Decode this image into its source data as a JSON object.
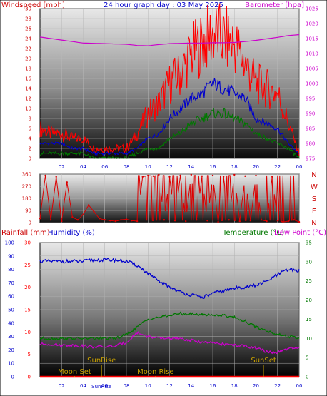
{
  "header": {
    "title": "24 hour graph day : 03 May 2025",
    "left_label": "Windspeed [mph]",
    "right_label": "Barometer [hpa]"
  },
  "lower_header": {
    "rain_label": "Rainfall (mm)",
    "hum_label": "Humidity (%)",
    "temp_label": "Temperature (°C)",
    "dew_label": "Dew Point (°C)"
  },
  "colors": {
    "windspeed": "#ff0000",
    "wind_avg": "#0000cc",
    "wind_low": "#007700",
    "barometer": "#cc00cc",
    "direction": "#dd0000",
    "humidity": "#0000cc",
    "temperature": "#007700",
    "dewpoint": "#cc00cc",
    "rainfall": "#ff0000",
    "events": "#c8a000",
    "title": "#0000cc",
    "left_axis": "#cc0000",
    "right_axis": "#cc00cc"
  },
  "chart_data": [
    {
      "type": "line",
      "name": "wind",
      "x_ticks": [
        "02",
        "04",
        "06",
        "08",
        "10",
        "12",
        "14",
        "16",
        "18",
        "20",
        "22",
        "00"
      ],
      "y_left_ticks": [
        "0",
        "2",
        "4",
        "6",
        "8",
        "10",
        "12",
        "14",
        "16",
        "18",
        "20",
        "22",
        "24",
        "26",
        "28",
        "30"
      ],
      "y_right_ticks": [
        "975",
        "980",
        "985",
        "990",
        "995",
        "1000",
        "1005",
        "1010",
        "1015",
        "1020",
        "1025"
      ],
      "ylim_left": [
        0,
        30
      ],
      "ylim_right": [
        975,
        1025
      ],
      "hours": [
        0,
        1,
        2,
        3,
        4,
        5,
        6,
        7,
        8,
        9,
        10,
        11,
        12,
        13,
        14,
        15,
        16,
        17,
        18,
        19,
        20,
        21,
        22,
        23,
        24
      ],
      "series": [
        {
          "key": "windspeed",
          "values": [
            6,
            5,
            5,
            4,
            4,
            2,
            2,
            2,
            2,
            5,
            9,
            11,
            15,
            17,
            21,
            23,
            25,
            24,
            23,
            19,
            15,
            14,
            13,
            7,
            1
          ]
        },
        {
          "key": "wind_avg",
          "values": [
            3,
            3,
            3,
            2,
            2,
            1,
            1,
            1,
            1,
            2,
            4,
            5,
            8,
            10,
            12,
            13,
            15,
            14,
            13,
            12,
            8,
            7,
            6,
            3,
            1
          ]
        },
        {
          "key": "wind_low",
          "values": [
            1,
            1,
            1,
            1,
            1,
            0,
            0,
            0,
            0,
            1,
            2,
            2,
            4,
            5,
            7,
            8,
            9,
            9,
            8,
            7,
            5,
            4,
            3,
            2,
            0
          ]
        },
        {
          "key": "barometer",
          "values": [
            1015.5,
            1015,
            1014.5,
            1014,
            1013.5,
            1013.4,
            1013.3,
            1013.2,
            1013.1,
            1012.7,
            1012.6,
            1013,
            1013.3,
            1013.4,
            1013.5,
            1013.5,
            1013.6,
            1013.6,
            1013.7,
            1014,
            1014.4,
            1014.9,
            1015.4,
            1016,
            1016.3
          ]
        }
      ]
    },
    {
      "type": "scatter",
      "name": "wind-direction",
      "y_ticks": [
        "0",
        "90",
        "180",
        "270",
        "360"
      ],
      "compass": [
        "N",
        "W",
        "S",
        "E",
        "N"
      ],
      "ylim": [
        0,
        360
      ],
      "hours": [
        0,
        0.5,
        1,
        1.5,
        2,
        2.5,
        3,
        3.5,
        4,
        4.5,
        5,
        5.5,
        6,
        6.5,
        7,
        7.5,
        8,
        8.5,
        9,
        9.5,
        10,
        10.5,
        11,
        11.5,
        12,
        12.5,
        13,
        13.5,
        14,
        14.5,
        15,
        15.5,
        16,
        16.5,
        17,
        17.5,
        18,
        18.5,
        19,
        19.5,
        20,
        20.5,
        21,
        21.5,
        22,
        22.5,
        23,
        23.5,
        24
      ],
      "values": [
        30,
        350,
        20,
        340,
        10,
        300,
        40,
        20,
        60,
        130,
        80,
        30,
        20,
        15,
        10,
        20,
        25,
        15,
        10,
        340,
        350,
        345,
        355,
        20,
        340,
        15,
        350,
        10,
        355,
        20,
        345,
        15,
        350,
        5,
        340,
        20,
        355,
        10,
        345,
        15,
        350,
        20,
        10,
        340,
        15,
        5,
        10,
        20,
        5
      ]
    },
    {
      "type": "line",
      "name": "temperature-humidity",
      "x_ticks": [
        "02",
        "04",
        "06",
        "08",
        "10",
        "12",
        "14",
        "16",
        "18",
        "20",
        "22",
        "00"
      ],
      "y_far_left_ticks": [
        "0",
        "10",
        "20",
        "30",
        "40",
        "50",
        "60",
        "70",
        "80",
        "90",
        "100"
      ],
      "y_left_ticks": [
        "0",
        "5",
        "10",
        "15",
        "20",
        "25",
        "30"
      ],
      "y_right_ticks": [
        "0",
        "5",
        "10",
        "15",
        "20",
        "25",
        "30",
        "35"
      ],
      "ylim_humidity": [
        0,
        100
      ],
      "ylim_rain": [
        0,
        30
      ],
      "ylim_temp": [
        0,
        35
      ],
      "hours": [
        0,
        1,
        2,
        3,
        4,
        5,
        6,
        7,
        8,
        9,
        10,
        11,
        12,
        13,
        14,
        15,
        16,
        17,
        18,
        19,
        20,
        21,
        22,
        23,
        24
      ],
      "series": [
        {
          "key": "humidity",
          "values": [
            86,
            86,
            86,
            86,
            86,
            87,
            87,
            87,
            86,
            83,
            77,
            71,
            67,
            63,
            61,
            59,
            62,
            64,
            66,
            67,
            68,
            71,
            76,
            80,
            79
          ]
        },
        {
          "key": "temperature",
          "values": [
            10,
            10,
            10,
            10,
            10,
            10,
            10,
            10,
            11,
            13,
            15,
            15.5,
            16,
            16.5,
            16.3,
            16.2,
            16.1,
            16,
            15.5,
            14.5,
            13,
            12,
            11,
            10.5,
            10
          ]
        },
        {
          "key": "dewpoint",
          "values": [
            8.5,
            8.5,
            8.2,
            8.2,
            8,
            7.8,
            7.8,
            8,
            9,
            11.5,
            10.5,
            10,
            10,
            9.8,
            9.5,
            9,
            8.8,
            8.5,
            8.2,
            8,
            7.5,
            6.5,
            6.3,
            7.3,
            7.5
          ]
        },
        {
          "key": "rainfall",
          "values": [
            0,
            0,
            0,
            0,
            0,
            0,
            0,
            0,
            0,
            0,
            0,
            0,
            0,
            0,
            0,
            0,
            0,
            0,
            0,
            0,
            0,
            0,
            0,
            0,
            0
          ]
        }
      ],
      "events": [
        {
          "label": "Moon Set",
          "hour": 3.2
        },
        {
          "label": "SunRise",
          "hour": 5.7
        },
        {
          "label": "Moon Rise",
          "hour": 10.7
        },
        {
          "label": "SunSet",
          "hour": 20.7
        }
      ],
      "bottom_labels": [
        "SunRise"
      ]
    }
  ]
}
